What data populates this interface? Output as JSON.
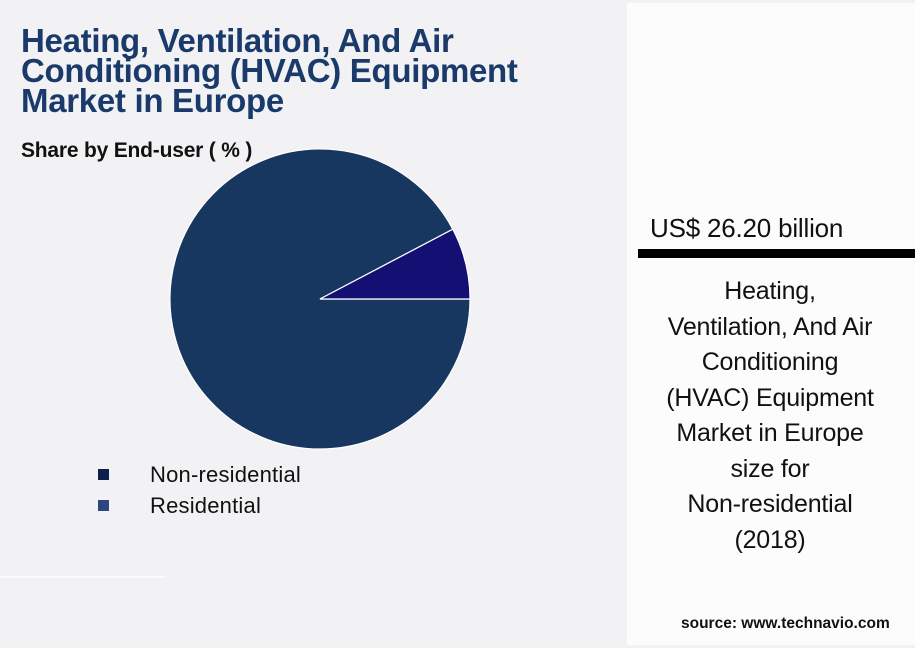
{
  "header": {
    "title": "Heating, Ventilation, And Air Conditioning (HVAC) Equipment Market in Europe",
    "subtitle": "Share by End-user ( % )"
  },
  "legend": {
    "items": [
      {
        "label": "Non-residential",
        "color": "#0f1f4b"
      },
      {
        "label": "Residential",
        "color": "#2e4680"
      }
    ]
  },
  "side_panel": {
    "value": "US$ 26.20 billion",
    "description": "Heating,\nVentilation, And Air\nConditioning\n(HVAC) Equipment\nMarket in Europe\nsize for\nNon-residential\n(2018)",
    "source": "source: www.technavio.com"
  },
  "chart_data": {
    "type": "pie",
    "title": "Heating, Ventilation, And Air Conditioning (HVAC) Equipment Market in Europe",
    "subtitle": "Share by End-user ( % )",
    "categories": [
      "Non-residential",
      "Residential"
    ],
    "values": [
      92.3,
      7.7
    ],
    "slice_colors": [
      "#173760",
      "#140f72"
    ],
    "legend_position": "bottom-left",
    "annotation": "US$ 26.20 billion — Non-residential (2018)"
  }
}
